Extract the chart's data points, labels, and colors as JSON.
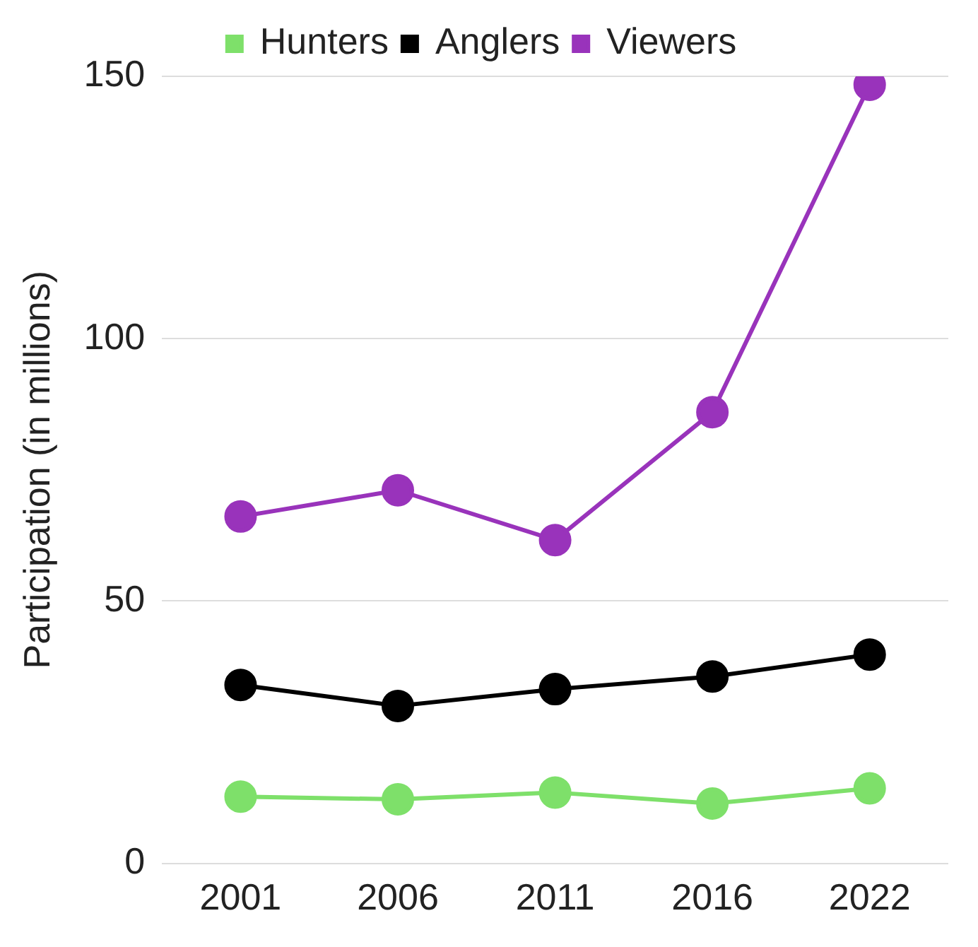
{
  "chart_data": {
    "type": "line",
    "ylabel": "Participation (in millions)",
    "categories": [
      "2001",
      "2006",
      "2011",
      "2016",
      "2022"
    ],
    "series": [
      {
        "name": "Hunters",
        "color": "#7ee06a",
        "values": [
          12.7,
          12.2,
          13.5,
          11.4,
          14.3
        ]
      },
      {
        "name": "Anglers",
        "color": "#000000",
        "values": [
          34,
          30,
          33.2,
          35.6,
          39.8
        ]
      },
      {
        "name": "Viewers",
        "color": "#9933bb",
        "values": [
          66.1,
          71.1,
          61.6,
          86,
          148.4
        ]
      }
    ],
    "ylim": [
      0,
      150
    ],
    "yticks": [
      0,
      50,
      100,
      150
    ],
    "grid": "y",
    "legend": "top",
    "marker": "circle"
  }
}
